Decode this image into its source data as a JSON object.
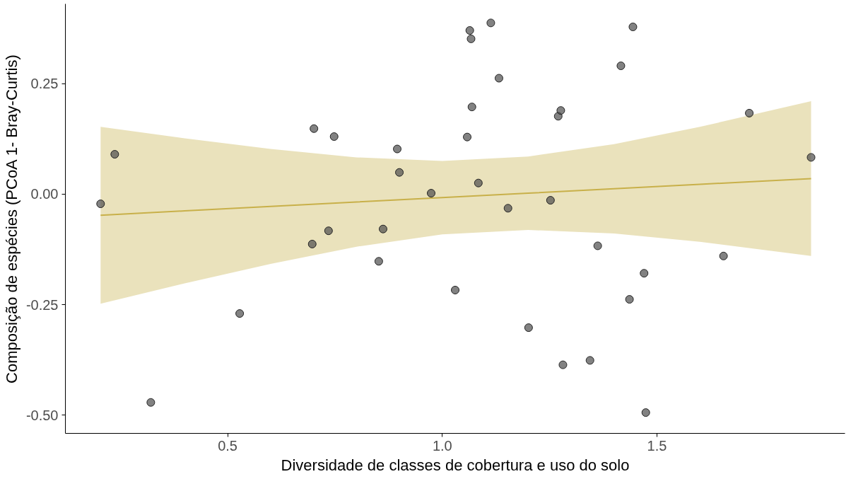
{
  "chart_data": {
    "type": "scatter",
    "xlabel": "Diversidade de classes de cobertura e uso do solo",
    "ylabel": "Composição de espécies (PCoA 1- Bray-Curtis)",
    "xlim": [
      0.122,
      1.938
    ],
    "ylim": [
      -0.541,
      0.43
    ],
    "xticks": [
      {
        "value": 0.5,
        "label": "0.5"
      },
      {
        "value": 1.0,
        "label": "1.0"
      },
      {
        "value": 1.5,
        "label": "1.5"
      }
    ],
    "yticks": [
      {
        "value": -0.5,
        "label": "-0.50"
      },
      {
        "value": -0.25,
        "label": "-0.25"
      },
      {
        "value": 0,
        "label": "0.00"
      },
      {
        "value": 0.25,
        "label": "0.25"
      }
    ],
    "grid": false,
    "series": [
      {
        "marker": "circle",
        "color": "#4d4d4d",
        "x": [
          0.204,
          0.237,
          0.321,
          0.528,
          0.697,
          0.701,
          0.735,
          0.748,
          0.852,
          0.862,
          0.895,
          0.9,
          0.974,
          1.03,
          1.058,
          1.064,
          1.067,
          1.069,
          1.084,
          1.113,
          1.132,
          1.153,
          1.201,
          1.252,
          1.27,
          1.276,
          1.281,
          1.344,
          1.362,
          1.416,
          1.436,
          1.444,
          1.47,
          1.474,
          1.655,
          1.715,
          1.859
        ],
        "values": [
          -0.022,
          0.09,
          -0.471,
          -0.27,
          -0.113,
          0.148,
          -0.083,
          0.13,
          -0.152,
          -0.079,
          0.102,
          0.049,
          0.002,
          -0.217,
          0.129,
          0.37,
          0.351,
          0.197,
          0.025,
          0.387,
          0.262,
          -0.032,
          -0.302,
          -0.014,
          0.176,
          0.189,
          -0.386,
          -0.376,
          -0.117,
          0.29,
          -0.238,
          0.378,
          -0.179,
          -0.494,
          -0.14,
          0.183,
          0.083
        ]
      },
      {
        "type": "line",
        "marker": "none",
        "color": "#c8b04a",
        "x": [
          0.204,
          0.4,
          0.6,
          0.8,
          1.0,
          1.2,
          1.4,
          1.6,
          1.859
        ],
        "values": [
          -0.048,
          -0.038,
          -0.028,
          -0.018,
          -0.008,
          0.002,
          0.012,
          0.022,
          0.035
        ],
        "lower": [
          -0.248,
          -0.202,
          -0.158,
          -0.119,
          -0.091,
          -0.081,
          -0.089,
          -0.108,
          -0.14
        ],
        "upper": [
          0.152,
          0.126,
          0.102,
          0.083,
          0.075,
          0.085,
          0.113,
          0.152,
          0.21
        ]
      }
    ]
  }
}
